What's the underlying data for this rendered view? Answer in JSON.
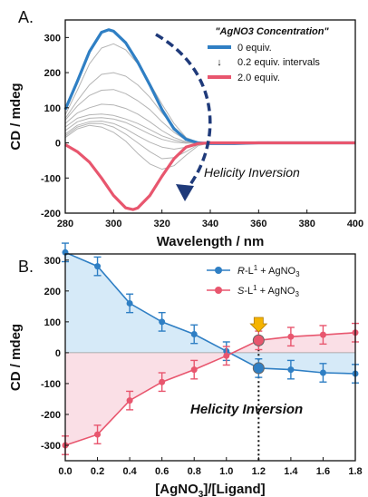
{
  "chart_data": [
    {
      "type": "line",
      "panel_label": "A.",
      "xlabel": "Wavelength / nm",
      "ylabel": "CD / mdeg",
      "xlim": [
        280,
        400
      ],
      "ylim": [
        -200,
        350
      ],
      "x_ticks": [
        "280",
        "300",
        "320",
        "340",
        "360",
        "380",
        "400"
      ],
      "y_ticks": [
        "-200",
        "-100",
        "0",
        "100",
        "200",
        "300"
      ],
      "legend_title": "\"AgNO3 Concentration\"",
      "legend": [
        "0 equiv.",
        "0.2 equiv. intervals",
        "2.0 equiv."
      ],
      "annotation": "Helicity Inversion",
      "colors": {
        "start": "#2f7fc4",
        "end": "#e8566e",
        "intermediate": "#b4b4b4",
        "arrow": "#1f3a7a"
      },
      "series": [
        {
          "name": "0 equiv.",
          "x": [
            280,
            285,
            290,
            295,
            298,
            300,
            305,
            310,
            315,
            320,
            325,
            330,
            335,
            340,
            350,
            360,
            380,
            400
          ],
          "y": [
            95,
            175,
            260,
            315,
            322,
            318,
            285,
            230,
            165,
            95,
            40,
            10,
            0,
            -2,
            -2,
            0,
            0,
            0
          ]
        },
        {
          "x": [
            280,
            285,
            290,
            295,
            300,
            305,
            310,
            315,
            320,
            325,
            330,
            335,
            340,
            360,
            400
          ],
          "y": [
            80,
            150,
            225,
            270,
            282,
            265,
            225,
            170,
            110,
            55,
            15,
            2,
            0,
            0,
            0
          ]
        },
        {
          "x": [
            280,
            285,
            290,
            295,
            300,
            305,
            310,
            315,
            320,
            325,
            330,
            335,
            340,
            360,
            400
          ],
          "y": [
            70,
            120,
            165,
            195,
            200,
            190,
            165,
            130,
            85,
            45,
            12,
            2,
            0,
            0,
            0
          ]
        },
        {
          "x": [
            280,
            285,
            290,
            295,
            300,
            305,
            310,
            315,
            320,
            325,
            330,
            335,
            340,
            360,
            400
          ],
          "y": [
            65,
            105,
            135,
            150,
            152,
            140,
            120,
            95,
            60,
            30,
            8,
            1,
            0,
            0,
            0
          ]
        },
        {
          "x": [
            280,
            285,
            290,
            295,
            300,
            305,
            310,
            315,
            320,
            325,
            330,
            335,
            340,
            360,
            400
          ],
          "y": [
            55,
            85,
            100,
            110,
            108,
            98,
            82,
            60,
            35,
            15,
            3,
            0,
            0,
            0,
            0
          ]
        },
        {
          "x": [
            280,
            285,
            290,
            295,
            300,
            305,
            310,
            315,
            320,
            325,
            330,
            335,
            340,
            360,
            400
          ],
          "y": [
            45,
            70,
            80,
            82,
            78,
            68,
            55,
            38,
            20,
            8,
            1,
            0,
            0,
            0,
            0
          ]
        },
        {
          "x": [
            280,
            285,
            290,
            295,
            300,
            305,
            310,
            315,
            320,
            325,
            330,
            335,
            340,
            360,
            400
          ],
          "y": [
            35,
            60,
            70,
            72,
            68,
            58,
            42,
            25,
            10,
            2,
            -1,
            0,
            0,
            0,
            0
          ]
        },
        {
          "x": [
            280,
            285,
            290,
            295,
            300,
            305,
            310,
            315,
            320,
            325,
            330,
            335,
            340,
            360,
            400
          ],
          "y": [
            25,
            50,
            60,
            62,
            55,
            40,
            20,
            2,
            -12,
            -18,
            -12,
            -3,
            0,
            0,
            0
          ]
        },
        {
          "x": [
            280,
            285,
            290,
            295,
            300,
            305,
            310,
            315,
            320,
            325,
            330,
            335,
            340,
            360,
            400
          ],
          "y": [
            20,
            45,
            55,
            55,
            45,
            25,
            0,
            -25,
            -45,
            -42,
            -25,
            -5,
            0,
            0,
            0
          ]
        },
        {
          "x": [
            280,
            285,
            290,
            295,
            300,
            305,
            310,
            315,
            320,
            325,
            330,
            335,
            340,
            360,
            400
          ],
          "y": [
            15,
            40,
            50,
            45,
            30,
            5,
            -30,
            -60,
            -75,
            -65,
            -35,
            -8,
            0,
            0,
            0
          ]
        },
        {
          "name": "2.0 equiv.",
          "x": [
            280,
            285,
            290,
            295,
            300,
            305,
            308,
            310,
            315,
            320,
            325,
            330,
            335,
            340,
            360,
            400
          ],
          "y": [
            -5,
            -25,
            -55,
            -100,
            -150,
            -185,
            -190,
            -185,
            -150,
            -95,
            -45,
            -12,
            -2,
            0,
            0,
            0
          ]
        }
      ]
    },
    {
      "type": "line",
      "panel_label": "B.",
      "xlabel": "[AgNO3]/[Ligand]",
      "ylabel": "CD / mdeg",
      "xlim": [
        0,
        1.8
      ],
      "ylim": [
        -350,
        320
      ],
      "x_ticks": [
        "0.0",
        "0.2",
        "0.4",
        "0.6",
        "0.8",
        "1.0",
        "1.2",
        "1.4",
        "1.6",
        "1.8"
      ],
      "y_ticks": [
        "-300",
        "-200",
        "-100",
        "0",
        "100",
        "200",
        "300"
      ],
      "annotation": "Helicity Inversion",
      "inversion_point": 1.2,
      "colors": {
        "R": "#2f7fc4",
        "S": "#e8566e",
        "fillR": "#d6eaf8",
        "fillS": "#fadbe3",
        "marker": "#f5b400"
      },
      "series": [
        {
          "name": "R-L1 + AgNO3",
          "x": [
            0,
            0.2,
            0.4,
            0.6,
            0.8,
            1.0,
            1.2,
            1.4,
            1.6,
            1.8
          ],
          "y": [
            325,
            280,
            160,
            100,
            60,
            5,
            -50,
            -55,
            -65,
            -68
          ],
          "err": [
            30,
            30,
            30,
            30,
            30,
            30,
            30,
            30,
            30,
            30
          ]
        },
        {
          "name": "S-L1 + AgNO3",
          "x": [
            0,
            0.2,
            0.4,
            0.6,
            0.8,
            1.0,
            1.2,
            1.4,
            1.6,
            1.8
          ],
          "y": [
            -300,
            -265,
            -155,
            -95,
            -55,
            -10,
            40,
            52,
            58,
            65
          ],
          "err": [
            30,
            30,
            30,
            30,
            30,
            30,
            30,
            30,
            30,
            30
          ]
        }
      ]
    }
  ]
}
